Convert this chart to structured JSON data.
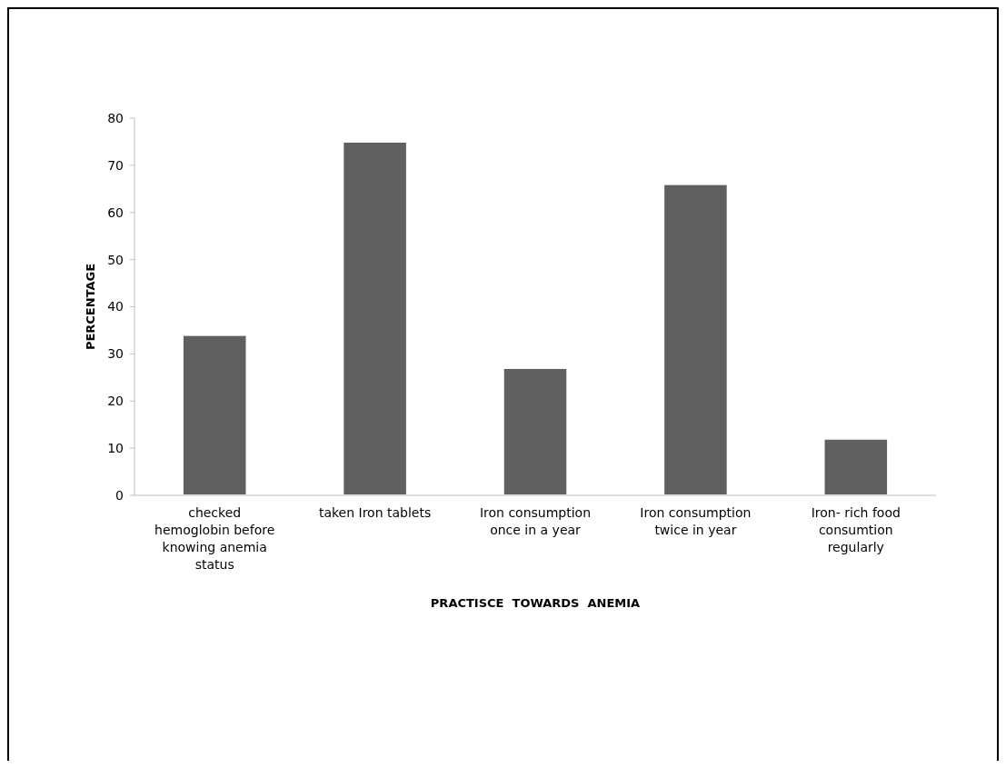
{
  "chart_data": {
    "type": "bar",
    "xlabel": "PRACTISCE  TOWARDS  ANEMIA",
    "ylabel": "PERCENTAGE",
    "categories": [
      "checked hemoglobin before knowing anemia status",
      "taken Iron tablets",
      "Iron consumption once in a year",
      "Iron consumption twice in year",
      "Iron- rich food consumtion regularly"
    ],
    "values": [
      34,
      75,
      27,
      66,
      12
    ],
    "color": "#606060",
    "ylim": [
      0,
      80
    ],
    "yticks": [
      0,
      10,
      20,
      30,
      40,
      50,
      60,
      70,
      80
    ],
    "grid": false
  }
}
